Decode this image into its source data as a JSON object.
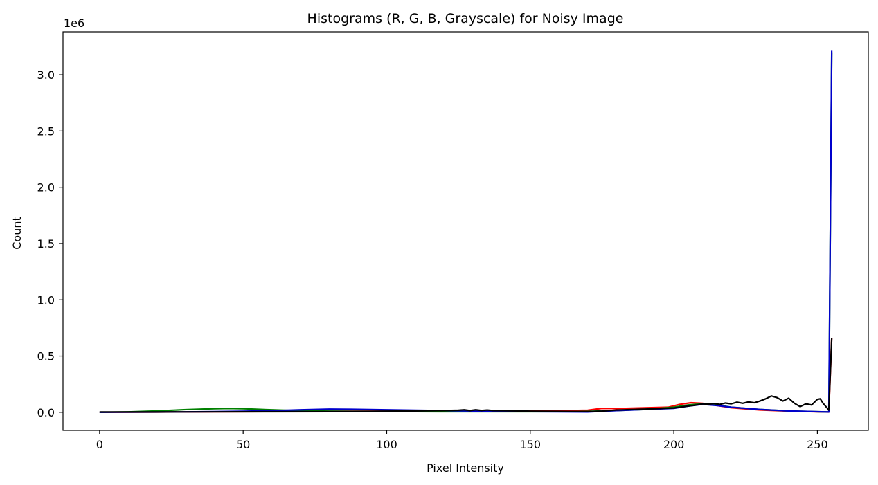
{
  "chart_data": {
    "type": "line",
    "title": "Histograms (R, G, B, Grayscale) for Noisy Image",
    "xlabel": "Pixel Intensity",
    "ylabel": "Count",
    "y_offset_label": "1e6",
    "xlim": [
      -12.75,
      267.75
    ],
    "ylim": [
      -0.161,
      3.382
    ],
    "x_ticks": [
      0,
      50,
      100,
      150,
      200,
      250
    ],
    "x_tick_labels": [
      "0",
      "50",
      "100",
      "150",
      "200",
      "250"
    ],
    "y_ticks": [
      0.0,
      0.5,
      1.0,
      1.5,
      2.0,
      2.5,
      3.0
    ],
    "y_tick_labels": [
      "0.0",
      "0.5",
      "1.0",
      "1.5",
      "2.0",
      "2.5",
      "3.0"
    ],
    "y_unit_multiplier": 1000000,
    "grid": false,
    "legend": "none",
    "series": [
      {
        "color": "#ff0000",
        "x": [
          0,
          10,
          20,
          30,
          40,
          50,
          60,
          70,
          80,
          90,
          100,
          110,
          120,
          130,
          140,
          150,
          160,
          170,
          175,
          180,
          190,
          198,
          202,
          206,
          210,
          215,
          220,
          225,
          230,
          240,
          250,
          254,
          255
        ],
        "y": [
          0.0,
          0.001,
          0.002,
          0.003,
          0.004,
          0.005,
          0.006,
          0.007,
          0.008,
          0.009,
          0.01,
          0.012,
          0.014,
          0.016,
          0.016,
          0.015,
          0.014,
          0.018,
          0.035,
          0.033,
          0.04,
          0.045,
          0.07,
          0.085,
          0.08,
          0.06,
          0.04,
          0.03,
          0.02,
          0.01,
          0.004,
          0.002,
          0.66
        ]
      },
      {
        "color": "#008000",
        "x": [
          0,
          10,
          20,
          30,
          40,
          45,
          50,
          60,
          70,
          80,
          90,
          100,
          110,
          120,
          130,
          140,
          150,
          160,
          170,
          180,
          190,
          200,
          205,
          210,
          215,
          220,
          230,
          240,
          250,
          254,
          255
        ],
        "y": [
          0.0,
          0.004,
          0.012,
          0.024,
          0.032,
          0.034,
          0.032,
          0.022,
          0.014,
          0.01,
          0.008,
          0.007,
          0.006,
          0.005,
          0.005,
          0.005,
          0.005,
          0.006,
          0.008,
          0.015,
          0.025,
          0.045,
          0.065,
          0.075,
          0.065,
          0.045,
          0.025,
          0.012,
          0.005,
          0.003,
          3.2
        ]
      },
      {
        "color": "#0000cc",
        "x": [
          0,
          10,
          20,
          30,
          40,
          50,
          60,
          70,
          80,
          90,
          100,
          110,
          120,
          130,
          140,
          150,
          160,
          170,
          180,
          190,
          200,
          205,
          210,
          215,
          220,
          230,
          240,
          250,
          254,
          255
        ],
        "y": [
          0.0,
          0.001,
          0.002,
          0.004,
          0.006,
          0.009,
          0.014,
          0.022,
          0.028,
          0.026,
          0.022,
          0.018,
          0.015,
          0.012,
          0.009,
          0.006,
          0.004,
          0.003,
          0.015,
          0.025,
          0.035,
          0.055,
          0.07,
          0.06,
          0.045,
          0.025,
          0.012,
          0.005,
          0.003,
          3.22
        ]
      },
      {
        "color": "#000000",
        "x": [
          0,
          20,
          40,
          60,
          80,
          100,
          110,
          120,
          125,
          127,
          129,
          131,
          133,
          135,
          137,
          140,
          150,
          160,
          170,
          175,
          180,
          190,
          200,
          205,
          208,
          210,
          212,
          214,
          216,
          218,
          220,
          222,
          224,
          226,
          228,
          230,
          232,
          234,
          236,
          238,
          240,
          242,
          244,
          246,
          248,
          250,
          251,
          252,
          253,
          254,
          255
        ],
        "y": [
          0.003,
          0.003,
          0.004,
          0.005,
          0.006,
          0.01,
          0.012,
          0.015,
          0.018,
          0.022,
          0.015,
          0.022,
          0.016,
          0.02,
          0.015,
          0.014,
          0.01,
          0.008,
          0.006,
          0.01,
          0.02,
          0.028,
          0.038,
          0.055,
          0.065,
          0.075,
          0.072,
          0.078,
          0.07,
          0.082,
          0.075,
          0.09,
          0.08,
          0.092,
          0.085,
          0.1,
          0.12,
          0.145,
          0.13,
          0.1,
          0.125,
          0.08,
          0.05,
          0.075,
          0.065,
          0.115,
          0.12,
          0.08,
          0.05,
          0.02,
          0.66
        ]
      }
    ]
  }
}
